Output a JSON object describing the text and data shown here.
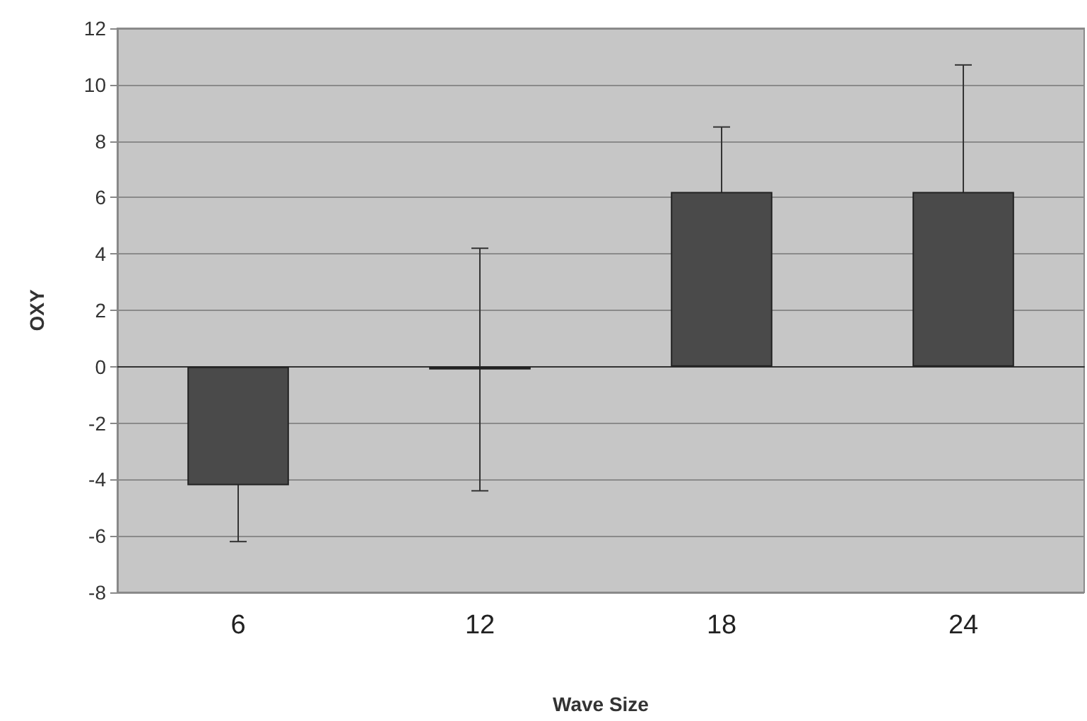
{
  "chart_data": {
    "type": "bar",
    "xlabel": "Wave Size",
    "ylabel": "OXY",
    "categories": [
      "6",
      "12",
      "18",
      "24"
    ],
    "values": [
      -4.2,
      -0.1,
      6.2,
      6.2
    ],
    "errors": [
      2,
      4.3,
      2.3,
      4.5
    ],
    "color": "#4a4a4a",
    "ylim": [
      -8,
      12
    ],
    "yticks": [
      -8,
      -6,
      -4,
      -2,
      0,
      2,
      4,
      6,
      8,
      10,
      12
    ],
    "grid": "y"
  }
}
